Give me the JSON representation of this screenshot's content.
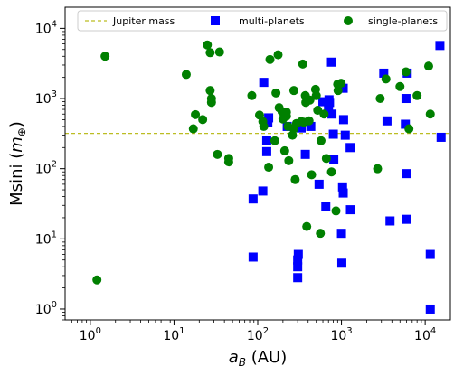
{
  "chart_data": {
    "type": "scatter",
    "xlabel": "a_B (AU)",
    "ylabel": "Msini (m_⊕)",
    "xscale": "log",
    "yscale": "log",
    "xlim": [
      0.5,
      20000
    ],
    "ylim": [
      0.7,
      20000
    ],
    "x_ticks": [
      {
        "value": 1,
        "base": "10",
        "exp": "0"
      },
      {
        "value": 10,
        "base": "10",
        "exp": "1"
      },
      {
        "value": 100,
        "base": "10",
        "exp": "2"
      },
      {
        "value": 1000,
        "base": "10",
        "exp": "3"
      },
      {
        "value": 10000,
        "base": "10",
        "exp": "4"
      }
    ],
    "y_ticks": [
      {
        "value": 1,
        "base": "10",
        "exp": "0"
      },
      {
        "value": 10,
        "base": "10",
        "exp": "1"
      },
      {
        "value": 100,
        "base": "10",
        "exp": "2"
      },
      {
        "value": 1000,
        "base": "10",
        "exp": "3"
      },
      {
        "value": 10000,
        "base": "10",
        "exp": "4"
      }
    ],
    "grid": false,
    "legend_position": "top",
    "reference_line": {
      "name": "Jupiter mass",
      "y": 318,
      "color": "#bcbd22",
      "style": "dashed"
    },
    "series": [
      {
        "name": "multi-planets",
        "marker": "square",
        "color": "#0000ff",
        "points": [
          [
            88,
            5.5
          ],
          [
            88,
            37
          ],
          [
            115,
            48
          ],
          [
            118,
            1700
          ],
          [
            128,
            250
          ],
          [
            128,
            175
          ],
          [
            132,
            450
          ],
          [
            135,
            530
          ],
          [
            225,
            400
          ],
          [
            300,
            2.8
          ],
          [
            300,
            4
          ],
          [
            300,
            5
          ],
          [
            305,
            6
          ],
          [
            330,
            380
          ],
          [
            370,
            160
          ],
          [
            430,
            400
          ],
          [
            540,
            60
          ],
          [
            600,
            900
          ],
          [
            650,
            29
          ],
          [
            700,
            740
          ],
          [
            710,
            960
          ],
          [
            720,
            880
          ],
          [
            760,
            3300
          ],
          [
            770,
            600
          ],
          [
            800,
            310
          ],
          [
            810,
            135
          ],
          [
            1000,
            12
          ],
          [
            1010,
            4.5
          ],
          [
            1030,
            55
          ],
          [
            1050,
            45
          ],
          [
            1050,
            1400
          ],
          [
            1060,
            500
          ],
          [
            1110,
            300
          ],
          [
            1270,
            200
          ],
          [
            1280,
            26
          ],
          [
            3200,
            2300
          ],
          [
            3500,
            480
          ],
          [
            3800,
            18
          ],
          [
            5800,
            430
          ],
          [
            5900,
            1000
          ],
          [
            6000,
            19
          ],
          [
            6000,
            85
          ],
          [
            6100,
            2300
          ],
          [
            11500,
            1
          ],
          [
            11500,
            6
          ],
          [
            15000,
            5700
          ],
          [
            15500,
            280
          ]
        ]
      },
      {
        "name": "single-planets",
        "marker": "circle",
        "color": "#008000",
        "points": [
          [
            1.2,
            2.6
          ],
          [
            1.5,
            4000
          ],
          [
            14,
            2200
          ],
          [
            17,
            370
          ],
          [
            18,
            590
          ],
          [
            22,
            500
          ],
          [
            25,
            5800
          ],
          [
            27,
            4500
          ],
          [
            27,
            1300
          ],
          [
            28,
            1000
          ],
          [
            28,
            880
          ],
          [
            33,
            160
          ],
          [
            35,
            4600
          ],
          [
            45,
            140
          ],
          [
            45,
            125
          ],
          [
            85,
            1100
          ],
          [
            105,
            580
          ],
          [
            115,
            470
          ],
          [
            118,
            400
          ],
          [
            135,
            105
          ],
          [
            140,
            3600
          ],
          [
            160,
            250
          ],
          [
            165,
            1200
          ],
          [
            175,
            4200
          ],
          [
            180,
            740
          ],
          [
            195,
            650
          ],
          [
            200,
            510
          ],
          [
            210,
            180
          ],
          [
            220,
            640
          ],
          [
            220,
            560
          ],
          [
            230,
            400
          ],
          [
            235,
            130
          ],
          [
            260,
            300
          ],
          [
            270,
            1300
          ],
          [
            270,
            370
          ],
          [
            280,
            70
          ],
          [
            290,
            440
          ],
          [
            330,
            470
          ],
          [
            345,
            3100
          ],
          [
            355,
            460
          ],
          [
            370,
            1100
          ],
          [
            375,
            880
          ],
          [
            385,
            15
          ],
          [
            410,
            480
          ],
          [
            420,
            950
          ],
          [
            440,
            82
          ],
          [
            490,
            1350
          ],
          [
            500,
            1100
          ],
          [
            520,
            680
          ],
          [
            560,
            12
          ],
          [
            570,
            250
          ],
          [
            620,
            600
          ],
          [
            660,
            140
          ],
          [
            760,
            90
          ],
          [
            860,
            25
          ],
          [
            900,
            1600
          ],
          [
            910,
            1300
          ],
          [
            990,
            1650
          ],
          [
            2700,
            100
          ],
          [
            2900,
            1000
          ],
          [
            3400,
            1900
          ],
          [
            5000,
            1480
          ],
          [
            5900,
            2400
          ],
          [
            6400,
            370
          ],
          [
            8000,
            1100
          ],
          [
            11000,
            2900
          ],
          [
            11500,
            600
          ]
        ]
      }
    ]
  }
}
